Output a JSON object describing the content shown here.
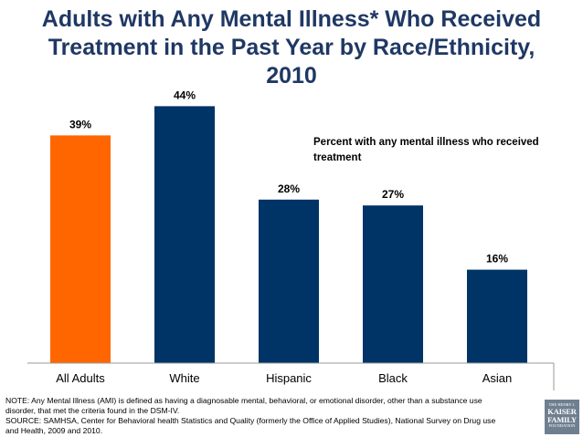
{
  "title": {
    "line1": "Adults with Any Mental Illness* Who Received",
    "line2": "Treatment in the Past Year by Race/Ethnicity,",
    "line3": "2010"
  },
  "colors": {
    "title": "#1f3864",
    "highlight": "#ff6600",
    "bar": "#003366",
    "axis": "#999999"
  },
  "chart_data": {
    "type": "bar",
    "title": "Adults with Any Mental Illness* Who Received Treatment in the Past Year by Race/Ethnicity, 2010",
    "legend": "Percent with any mental illness who received treatment",
    "categories": [
      "All Adults",
      "White",
      "Hispanic",
      "Black",
      "Asian"
    ],
    "values": [
      39,
      44,
      28,
      27,
      16
    ],
    "labels": [
      "39%",
      "44%",
      "28%",
      "27%",
      "16%"
    ],
    "highlight_index": 0,
    "ylim": [
      0,
      50
    ],
    "xlabel": "",
    "ylabel": ""
  },
  "note": {
    "line1": "NOTE:  Any Mental Illness (AMI) is defined as having a diagnosable mental, behavioral, or emotional disorder, other than a substance use",
    "line2": "disorder, that met the criteria found in the DSM-IV.",
    "line3": "SOURCE:  SAMHSA, Center for Behavioral health Statistics and Quality (formerly the Office of Applied Studies), National Survey on Drug use",
    "line4": "and Health, 2009 and 2010."
  },
  "logo": {
    "line1": "THE HENRY J.",
    "line2": "KAISER",
    "line3": "FAMILY",
    "line4": "FOUNDATION"
  }
}
